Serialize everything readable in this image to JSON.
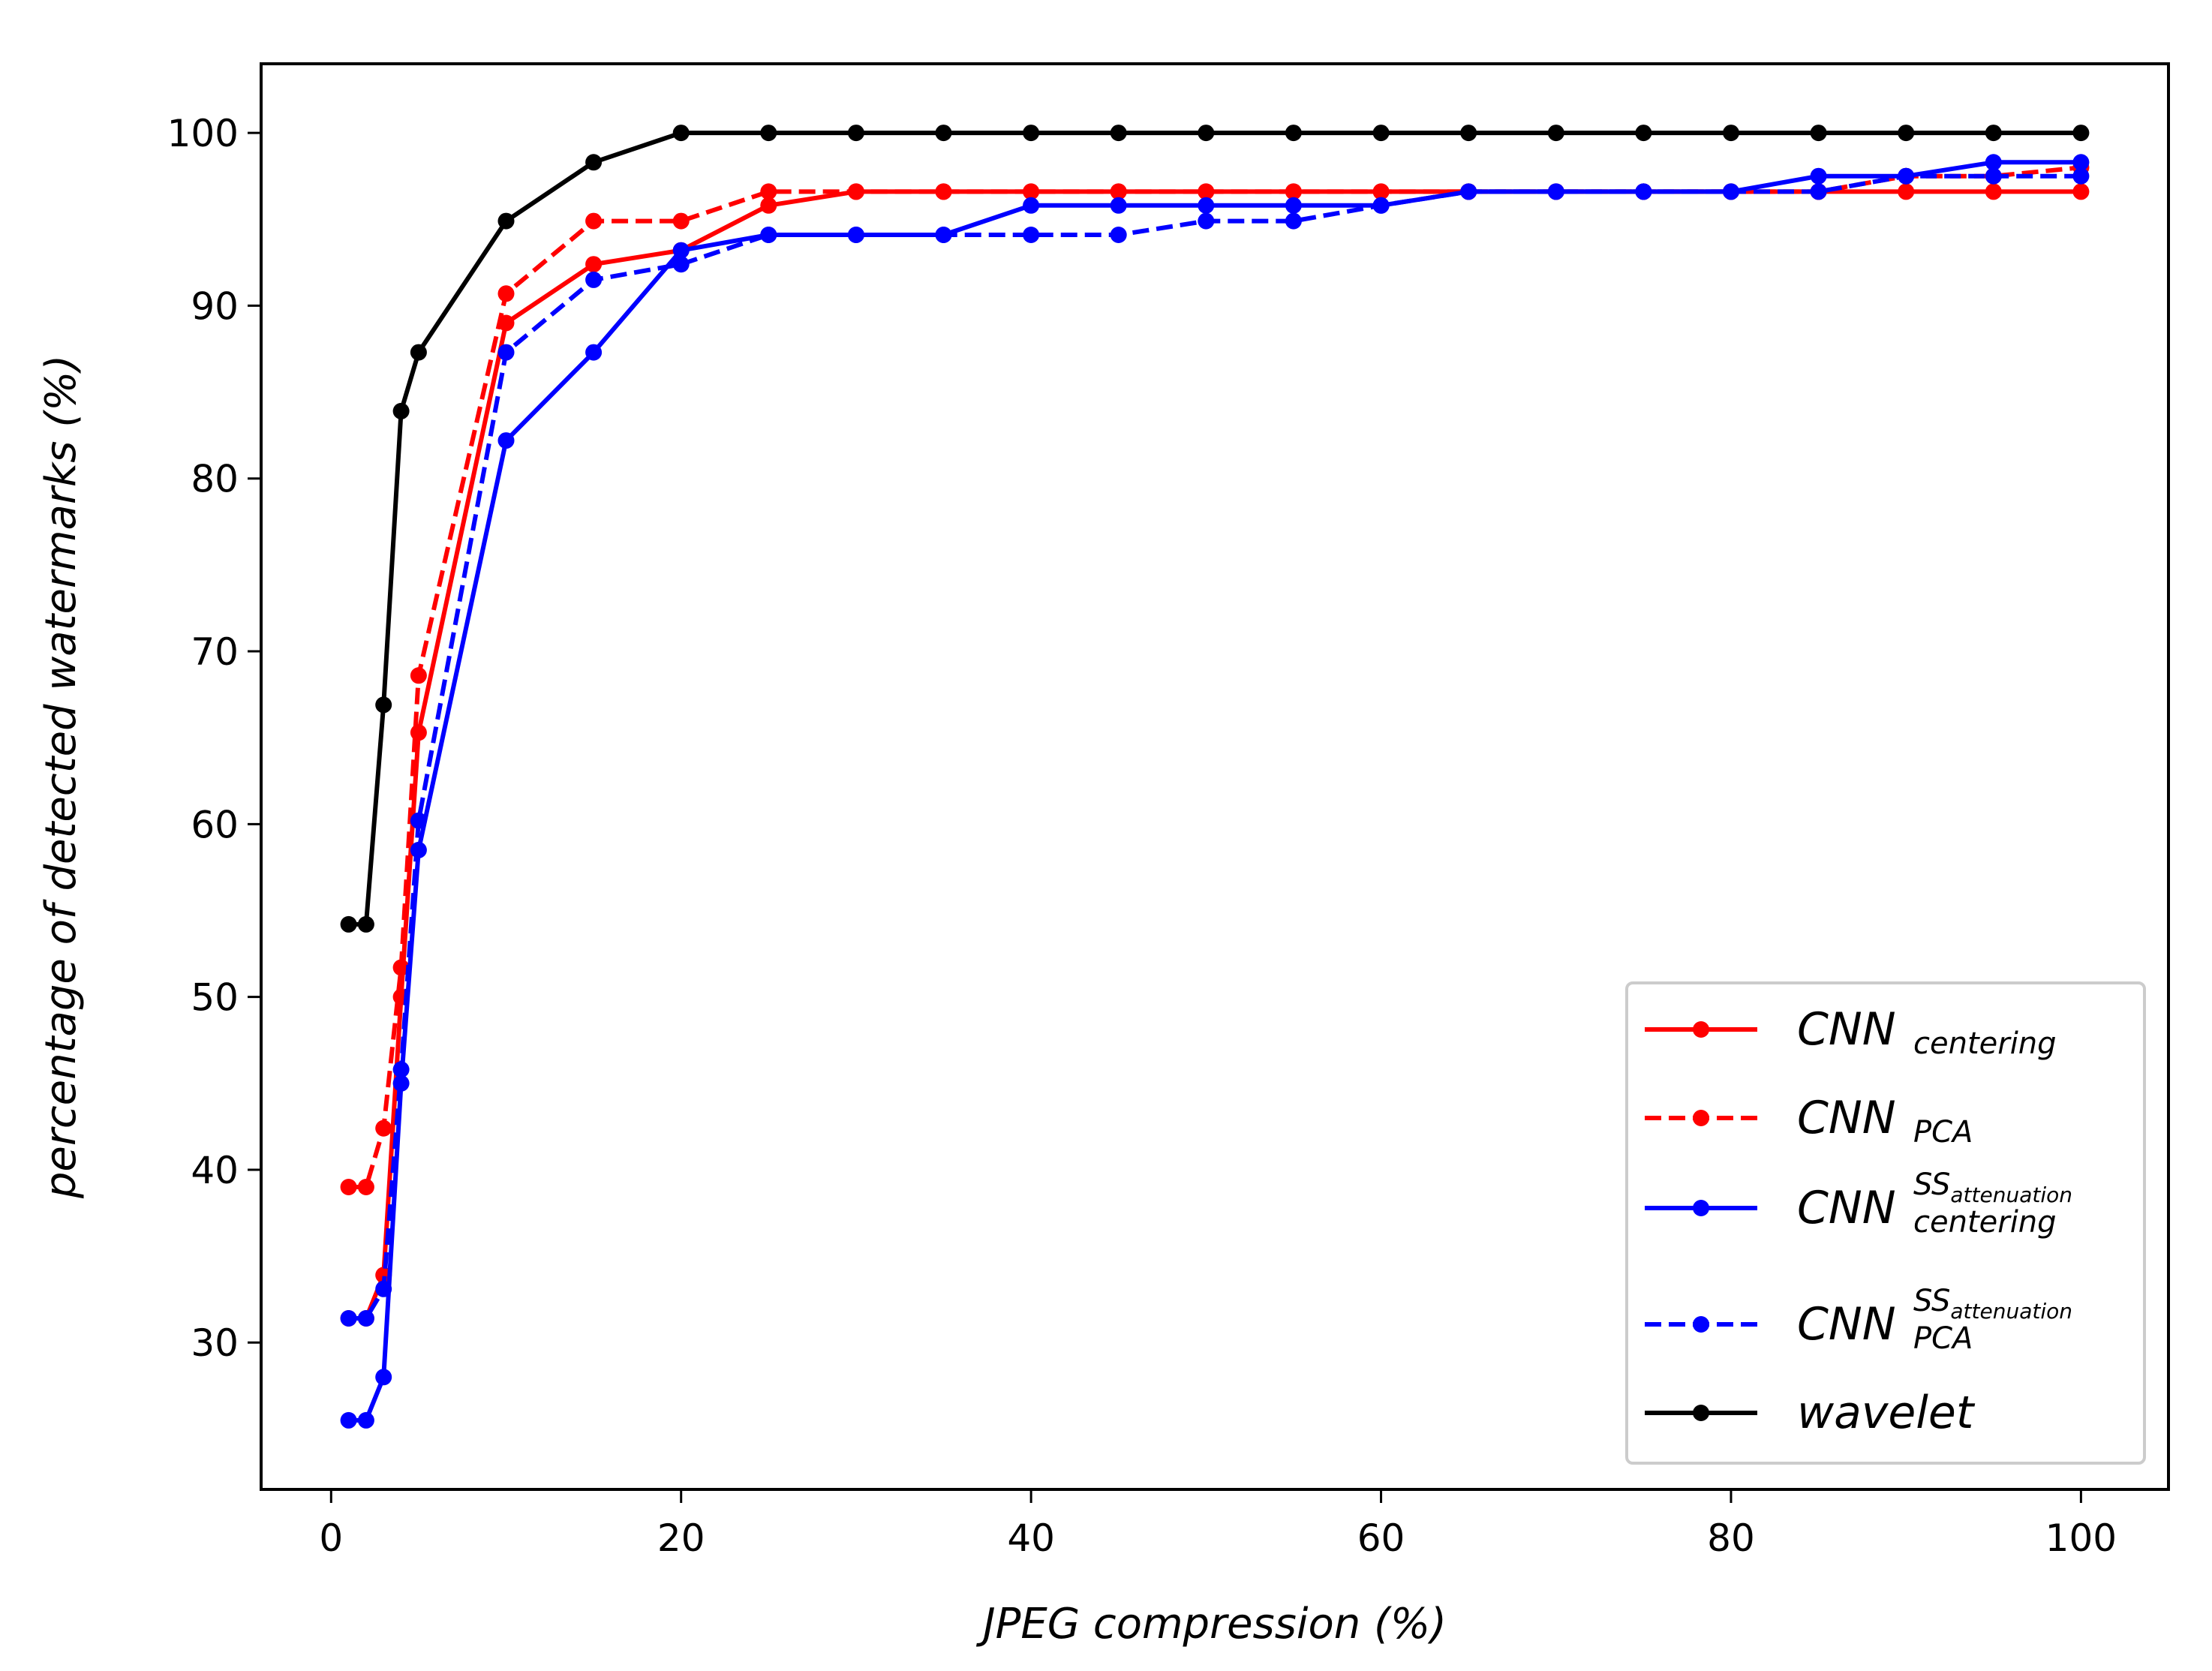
{
  "chart_data": {
    "type": "line",
    "title": "",
    "xlabel": "JPEG compression (%)",
    "ylabel": "percentage of detected watermarks (%)",
    "xlim": [
      -4,
      105
    ],
    "ylim": [
      21.5,
      104
    ],
    "xticks": [
      0,
      20,
      40,
      60,
      80,
      100
    ],
    "yticks": [
      30,
      40,
      50,
      60,
      70,
      80,
      90,
      100
    ],
    "x": [
      1,
      2,
      3,
      4,
      5,
      10,
      15,
      20,
      25,
      30,
      35,
      40,
      45,
      50,
      55,
      60,
      65,
      70,
      75,
      80,
      85,
      90,
      95,
      100
    ],
    "series": [
      {
        "name": "CNN_centering",
        "legend": {
          "base": "CNN",
          "sub": "centering",
          "sup": "",
          "supsub": ""
        },
        "color": "#ff0000",
        "dash": "solid",
        "values": [
          31.4,
          31.4,
          33.9,
          50.0,
          65.3,
          89.0,
          92.4,
          93.2,
          95.8,
          96.6,
          96.6,
          96.6,
          96.6,
          96.6,
          96.6,
          96.6,
          96.6,
          96.6,
          96.6,
          96.6,
          96.6,
          96.6,
          96.6,
          96.6
        ]
      },
      {
        "name": "CNN_PCA",
        "legend": {
          "base": "CNN",
          "sub": "PCA",
          "sup": "",
          "supsub": ""
        },
        "color": "#ff0000",
        "dash": "dashed",
        "values": [
          39.0,
          39.0,
          42.4,
          51.7,
          68.6,
          90.7,
          94.9,
          94.9,
          96.6,
          96.6,
          96.6,
          96.6,
          96.6,
          96.6,
          96.6,
          96.6,
          96.6,
          96.6,
          96.6,
          96.6,
          96.6,
          97.5,
          97.5,
          98.0
        ]
      },
      {
        "name": "CNN_centering_SS_attenuation",
        "legend": {
          "base": "CNN",
          "sub": "centering",
          "sup": "SS",
          "supsub": "attenuation"
        },
        "color": "#0000ff",
        "dash": "solid",
        "values": [
          25.5,
          25.5,
          28.0,
          45.0,
          58.5,
          82.2,
          87.3,
          93.2,
          94.1,
          94.1,
          94.1,
          95.8,
          95.8,
          95.8,
          95.8,
          95.8,
          96.6,
          96.6,
          96.6,
          96.6,
          97.5,
          97.5,
          98.3,
          98.3
        ]
      },
      {
        "name": "CNN_PCA_SS_attenuation",
        "legend": {
          "base": "CNN",
          "sub": "PCA",
          "sup": "SS",
          "supsub": "attenuation"
        },
        "color": "#0000ff",
        "dash": "dashed",
        "values": [
          31.4,
          31.4,
          33.1,
          45.8,
          60.2,
          87.3,
          91.5,
          92.4,
          94.1,
          94.1,
          94.1,
          94.1,
          94.1,
          94.9,
          94.9,
          95.8,
          96.6,
          96.6,
          96.6,
          96.6,
          96.6,
          97.5,
          97.5,
          97.5
        ]
      },
      {
        "name": "wavelet",
        "legend": {
          "base": "wavelet",
          "sub": "",
          "sup": "",
          "supsub": ""
        },
        "color": "#000000",
        "dash": "solid",
        "values": [
          54.2,
          54.2,
          66.9,
          83.9,
          87.3,
          94.9,
          98.3,
          100.0,
          100.0,
          100.0,
          100.0,
          100.0,
          100.0,
          100.0,
          100.0,
          100.0,
          100.0,
          100.0,
          100.0,
          100.0,
          100.0,
          100.0,
          100.0,
          100.0
        ]
      }
    ],
    "legend_position": "lower-right",
    "grid": false
  }
}
